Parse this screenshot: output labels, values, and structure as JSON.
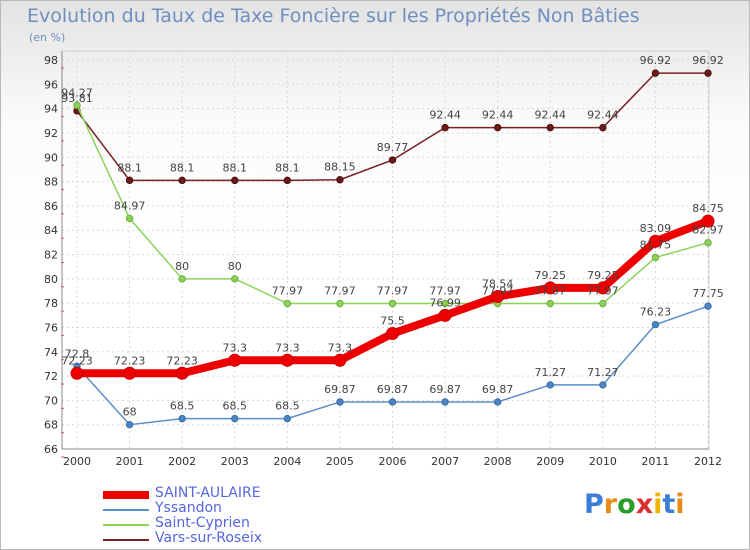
{
  "title": "Evolution du Taux de Taxe Foncière sur les Propriétés Non Bâties",
  "unit": "(en %)",
  "logo": {
    "text": "Proxiti",
    "colors": [
      "#3a7fd5",
      "#e88a1a",
      "#2a9d2a",
      "#d83030",
      "#f0b400",
      "#3a7fd5",
      "#e88a1a"
    ]
  },
  "chart_data": {
    "type": "line",
    "title": "Evolution du Taux de Taxe Foncière sur les Propriétés Non Bâties",
    "ylabel": "(en %)",
    "xlabel": "",
    "ylim": [
      66,
      98
    ],
    "yticks": [
      66,
      68,
      70,
      72,
      74,
      76,
      78,
      80,
      82,
      84,
      86,
      88,
      90,
      92,
      94,
      96,
      98
    ],
    "categories": [
      "2000",
      "2001",
      "2002",
      "2003",
      "2004",
      "2005",
      "2006",
      "2007",
      "2008",
      "2009",
      "2010",
      "2011",
      "2012"
    ],
    "legend_position": "bottom-left",
    "grid": true,
    "series": [
      {
        "name": "Vars-sur-Roseix",
        "color": "#7b2020",
        "values": [
          93.81,
          88.1,
          88.1,
          88.1,
          88.1,
          88.15,
          89.77,
          92.44,
          92.44,
          92.44,
          92.44,
          96.92,
          96.92
        ],
        "labels": [
          "93.81",
          "88.1",
          "88.1",
          "88.1",
          "88.1",
          "88.15",
          "89.77",
          "92.44",
          "92.44",
          "92.44",
          "92.44",
          "96.92",
          "96.92"
        ]
      },
      {
        "name": "Saint-Cyprien",
        "color": "#8cd35a",
        "values": [
          94.27,
          84.97,
          80,
          80,
          77.97,
          77.97,
          77.97,
          77.97,
          77.97,
          77.97,
          77.97,
          81.75,
          82.97
        ],
        "labels": [
          "94.27",
          "84.97",
          "80",
          "80",
          "77.97",
          "77.97",
          "77.97",
          "77.97",
          "77.97",
          "77.97",
          "77.97",
          "81.75",
          "82.97"
        ]
      },
      {
        "name": "Yssandon",
        "color": "#5a8fc8",
        "values": [
          72.8,
          68,
          68.5,
          68.5,
          68.5,
          69.87,
          69.87,
          69.87,
          69.87,
          71.27,
          71.27,
          76.23,
          77.75
        ],
        "labels": [
          "72.8",
          "68",
          "68.5",
          "68.5",
          "68.5",
          "69.87",
          "69.87",
          "69.87",
          "69.87",
          "71.27",
          "71.27",
          "76.23",
          "77.75"
        ]
      },
      {
        "name": "SAINT-AULAIRE",
        "color": "#ee0000",
        "values": [
          72.23,
          72.23,
          72.23,
          73.3,
          73.3,
          73.3,
          75.5,
          76.99,
          78.54,
          79.25,
          79.25,
          83.09,
          84.75
        ],
        "labels": [
          "72.23",
          "72.23",
          "72.23",
          "73.3",
          "73.3",
          "73.3",
          "75.5",
          "76.99",
          "78.54",
          "79.25",
          "79.25",
          "83.09",
          "84.75"
        ]
      }
    ],
    "legend": [
      "SAINT-AULAIRE",
      "Yssandon",
      "Saint-Cyprien",
      "Vars-sur-Roseix"
    ]
  }
}
